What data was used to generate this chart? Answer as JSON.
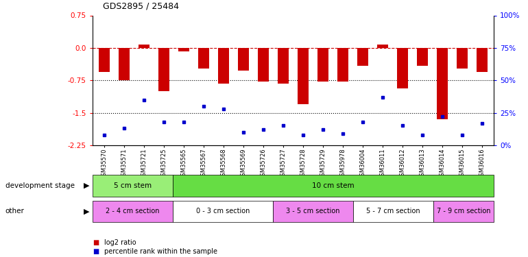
{
  "title": "GDS2895 / 25484",
  "samples": [
    "GSM35570",
    "GSM35571",
    "GSM35721",
    "GSM35725",
    "GSM35565",
    "GSM35567",
    "GSM35568",
    "GSM35569",
    "GSM35726",
    "GSM35727",
    "GSM35728",
    "GSM35729",
    "GSM35978",
    "GSM36004",
    "GSM36011",
    "GSM36012",
    "GSM36013",
    "GSM36014",
    "GSM36015",
    "GSM36016"
  ],
  "log2_ratio": [
    -0.55,
    -0.75,
    0.07,
    -1.0,
    -0.08,
    -0.48,
    -0.82,
    -0.52,
    -0.78,
    -0.82,
    -1.3,
    -0.78,
    -0.78,
    -0.42,
    0.07,
    -0.93,
    -0.42,
    -1.65,
    -0.48,
    -0.55
  ],
  "percentile": [
    8,
    13,
    35,
    18,
    18,
    30,
    28,
    10,
    12,
    15,
    8,
    12,
    9,
    18,
    37,
    15,
    8,
    22,
    8,
    17
  ],
  "ylim_left": [
    -2.25,
    0.75
  ],
  "ylim_right": [
    0,
    100
  ],
  "yticks_left": [
    0.75,
    0.0,
    -0.75,
    -1.5,
    -2.25
  ],
  "yticks_right": [
    100,
    75,
    50,
    25,
    0
  ],
  "bar_color": "#cc0000",
  "dot_color": "#0000cc",
  "dashed_color": "#cc0000",
  "dev_stage_groups": [
    {
      "label": "5 cm stem",
      "start": 0,
      "end": 3,
      "color": "#99ee77"
    },
    {
      "label": "10 cm stem",
      "start": 4,
      "end": 19,
      "color": "#66dd44"
    }
  ],
  "other_groups": [
    {
      "label": "2 - 4 cm section",
      "start": 0,
      "end": 3,
      "color": "#ee88ee"
    },
    {
      "label": "0 - 3 cm section",
      "start": 4,
      "end": 8,
      "color": "#ffffff"
    },
    {
      "label": "3 - 5 cm section",
      "start": 9,
      "end": 12,
      "color": "#ee88ee"
    },
    {
      "label": "5 - 7 cm section",
      "start": 13,
      "end": 16,
      "color": "#ffffff"
    },
    {
      "label": "7 - 9 cm section",
      "start": 17,
      "end": 19,
      "color": "#ee88ee"
    }
  ],
  "legend_log2_color": "#cc0000",
  "legend_pct_color": "#0000cc",
  "row_label_dev": "development stage",
  "row_label_other": "other",
  "bar_width": 0.55
}
